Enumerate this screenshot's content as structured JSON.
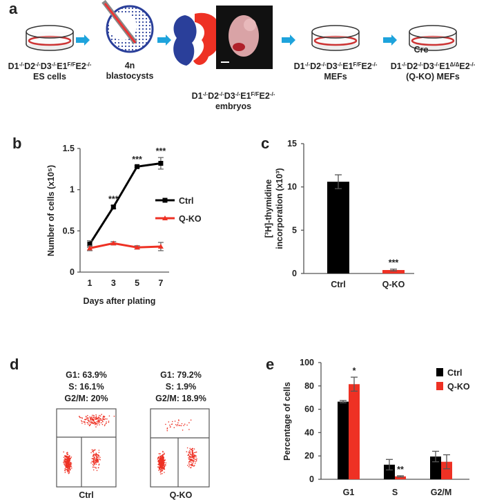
{
  "figure": {
    "panel_labels": [
      "a",
      "b",
      "c",
      "d",
      "e"
    ],
    "schematic": {
      "es_cells": {
        "genotype": [
          "D1",
          "-/-",
          "D2",
          "-/-",
          "D3",
          "-/-",
          "E1",
          "F/F",
          "E2",
          "-/-"
        ],
        "label": "ES cells"
      },
      "blastocysts": {
        "lines": [
          "4n",
          "blastocysts"
        ]
      },
      "embryos": {
        "genotype": [
          "D1",
          "-/-",
          "D2",
          "-/-",
          "D3",
          "-/-",
          "E1",
          "F/F",
          "E2",
          "-/-"
        ],
        "label": "embryos"
      },
      "mefs": {
        "genotype": [
          "D1",
          "-/-",
          "D2",
          "-/-",
          "D3",
          "-/-",
          "E1",
          "F/F",
          "E2",
          "-/-"
        ],
        "label": "MEFs"
      },
      "cre": "Cre",
      "qko_mefs": {
        "genotype": [
          "D1",
          "-/-",
          "D2",
          "-/-",
          "D3",
          "-/-",
          "E1",
          "Δ/Δ",
          "E2",
          "-/-"
        ],
        "label": "(Q-KO) MEFs"
      }
    },
    "flow": [
      {
        "stats": [
          "G1: 63.9%",
          "S: 16.1%",
          "G2/M: 20%"
        ],
        "label": "Ctrl"
      },
      {
        "stats": [
          "G1: 79.2%",
          "S: 1.9%",
          "G2/M: 18.9%"
        ],
        "label": "Q-KO"
      }
    ]
  },
  "chart_data": [
    {
      "type": "line",
      "categories": [
        "1",
        "3",
        "5",
        "7"
      ],
      "x_label": "Days after plating",
      "y_label": "Number of cells (x10⁵)",
      "ylim": [
        0,
        1.5
      ],
      "yticks": [
        0,
        0.5,
        1,
        1.5
      ],
      "series": [
        {
          "name": "Ctrl",
          "color": "#000000",
          "marker": "square",
          "values": [
            0.34,
            0.79,
            1.28,
            1.32
          ],
          "errors": [
            0.04,
            0.02,
            0.01,
            0.07
          ],
          "significance": [
            null,
            "***",
            "***",
            "***"
          ]
        },
        {
          "name": "Q-KO",
          "color": "#ee3124",
          "marker": "triangle",
          "values": [
            0.29,
            0.35,
            0.3,
            0.31
          ],
          "errors": [
            0.03,
            0.02,
            0.02,
            0.05
          ]
        }
      ]
    },
    {
      "type": "bar",
      "categories": [
        "Ctrl",
        "Q-KO"
      ],
      "y_label": [
        "[³H]-thymidine",
        "incorporation (x10³)"
      ],
      "ylim": [
        0,
        15
      ],
      "yticks": [
        0,
        5,
        10,
        15
      ],
      "values": [
        10.6,
        0.4
      ],
      "errors": [
        0.8,
        0.1
      ],
      "colors": [
        "#000000",
        "#ee3124"
      ],
      "significance": [
        null,
        "***"
      ]
    },
    {
      "type": "bar",
      "categories": [
        "G1",
        "S",
        "G2/M"
      ],
      "y_label": "Percentage of cells",
      "ylim": [
        0,
        100
      ],
      "yticks": [
        0,
        20,
        40,
        60,
        80,
        100
      ],
      "series": [
        {
          "name": "Ctrl",
          "color": "#000000",
          "values": [
            66.5,
            12.5,
            19.5
          ],
          "errors": [
            1,
            4.5,
            4.5
          ]
        },
        {
          "name": "Q-KO",
          "color": "#ee3124",
          "values": [
            81.5,
            2.5,
            15
          ],
          "errors": [
            6,
            0.5,
            6
          ],
          "significance": [
            "*",
            "**",
            null
          ]
        }
      ]
    }
  ]
}
